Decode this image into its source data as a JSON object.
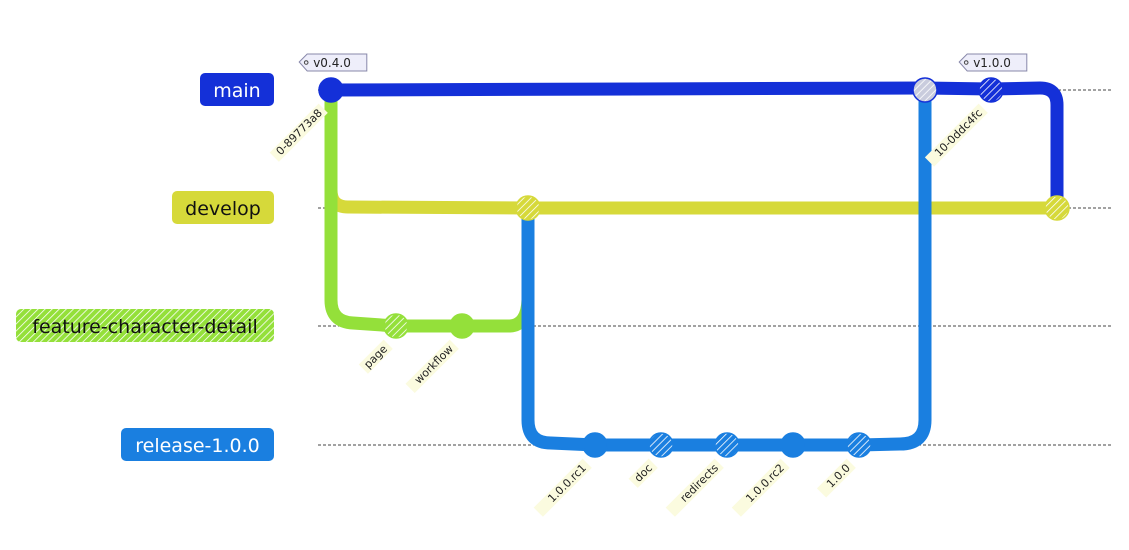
{
  "colors": {
    "main": "#1430d8",
    "develop": "#d6d93a",
    "feature": "#94e03a",
    "release": "#1a7fe0",
    "label_bg": "#fbfbdf",
    "tag_bg": "#eeeefa",
    "guide": "#444444"
  },
  "branches": [
    {
      "id": "main",
      "label": "main",
      "color_key": "main",
      "light_text": true
    },
    {
      "id": "develop",
      "label": "develop",
      "color_key": "develop",
      "light_text": false
    },
    {
      "id": "feature",
      "label": "feature-character-detail",
      "color_key": "feature",
      "light_text": false,
      "hatched": true
    },
    {
      "id": "release",
      "label": "release-1.0.0",
      "color_key": "release",
      "light_text": true
    }
  ],
  "commits": [
    {
      "id": "c-main-0",
      "branch": "main",
      "label": "0-89773a8",
      "tag": "v0.4.0"
    },
    {
      "id": "c-page",
      "branch": "feature",
      "label": "page",
      "hatched": true
    },
    {
      "id": "c-workflow",
      "branch": "feature",
      "label": "workflow"
    },
    {
      "id": "c-merge-dev",
      "branch": "develop",
      "label": "",
      "hatched": true
    },
    {
      "id": "c-rc1",
      "branch": "release",
      "label": "1.0.0.rc1"
    },
    {
      "id": "c-doc",
      "branch": "release",
      "label": "doc",
      "hatched": true
    },
    {
      "id": "c-redirects",
      "branch": "release",
      "label": "redirects",
      "hatched": true
    },
    {
      "id": "c-rc2",
      "branch": "release",
      "label": "1.0.0.rc2"
    },
    {
      "id": "c-100",
      "branch": "release",
      "label": "1.0.0",
      "hatched": true
    },
    {
      "id": "c-merge-main",
      "branch": "main",
      "label": "",
      "hatched": true
    },
    {
      "id": "c-main-10",
      "branch": "main",
      "label": "10-0ddc4fc",
      "tag": "v1.0.0",
      "hatched": true
    },
    {
      "id": "c-back-dev",
      "branch": "develop",
      "label": "",
      "hatched": true
    }
  ]
}
